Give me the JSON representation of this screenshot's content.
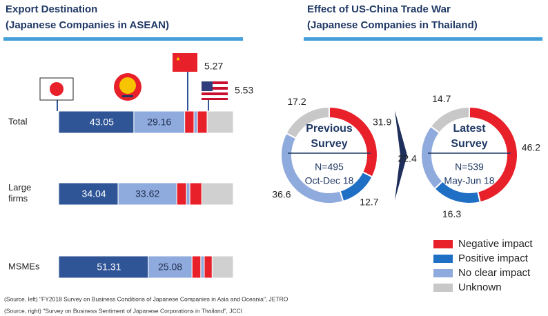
{
  "chart_data": [
    {
      "type": "stacked-bar-horizontal",
      "title": [
        "Export Destination",
        "(Japanese Companies in ASEAN)"
      ],
      "categories": [
        "Total",
        "Large firms",
        "MSMEs"
      ],
      "xlim": [
        0,
        100
      ],
      "series": [
        {
          "color": "#2f5597",
          "values": [
            43.05,
            34.04,
            51.31
          ],
          "value_labels": [
            "43.05",
            "34.04",
            "51.31"
          ]
        },
        {
          "color": "#8faadc",
          "values": [
            29.16,
            33.62,
            25.08
          ],
          "value_labels": [
            "29.16",
            "33.62",
            "25.08"
          ]
        },
        {
          "color": "#e8202a",
          "values": [
            5.27,
            5.5,
            5
          ],
          "value_labels": [
            "5.27",
            null,
            null
          ]
        },
        {
          "color": "#8faadc",
          "values": [
            2,
            2,
            2
          ]
        },
        {
          "color": "#e8202a",
          "values": [
            5.53,
            6.8,
            4.5
          ],
          "value_labels": [
            "5.53",
            null,
            null
          ]
        },
        {
          "color": "#d0d0d0",
          "values": [
            15,
            18,
            12.1
          ]
        }
      ]
    },
    {
      "type": "donut",
      "title": [
        "Effect of US-China Trade War",
        "(Japanese Companies in Thailand)"
      ],
      "categories": [
        "Negative impact",
        "Positive impact",
        "No clear impact",
        "Unknown"
      ],
      "colors": [
        "#e8202a",
        "#1f6fc5",
        "#8faadc",
        "#c8c8c8"
      ],
      "series": [
        {
          "center_title": [
            "Previous",
            "Survey"
          ],
          "center_note": [
            "N=495",
            "Oct-Dec 18"
          ],
          "values": [
            31.9,
            12.7,
            36.6,
            17.2
          ]
        },
        {
          "center_title": [
            "Latest",
            "Survey"
          ],
          "center_note": [
            "N=539",
            "May-Jun 18"
          ],
          "values": [
            46.2,
            16.3,
            22.4,
            14.7
          ]
        }
      ]
    }
  ],
  "sources": [
    "(Source, left) \"FY2018 Survey on Business Conditions of Japanese Companies in Asia and Oceania\", JETRO",
    "(Source, right) \"Survey on Business Sentiment of Japanese Corporations in Thailand\", JCCI"
  ]
}
